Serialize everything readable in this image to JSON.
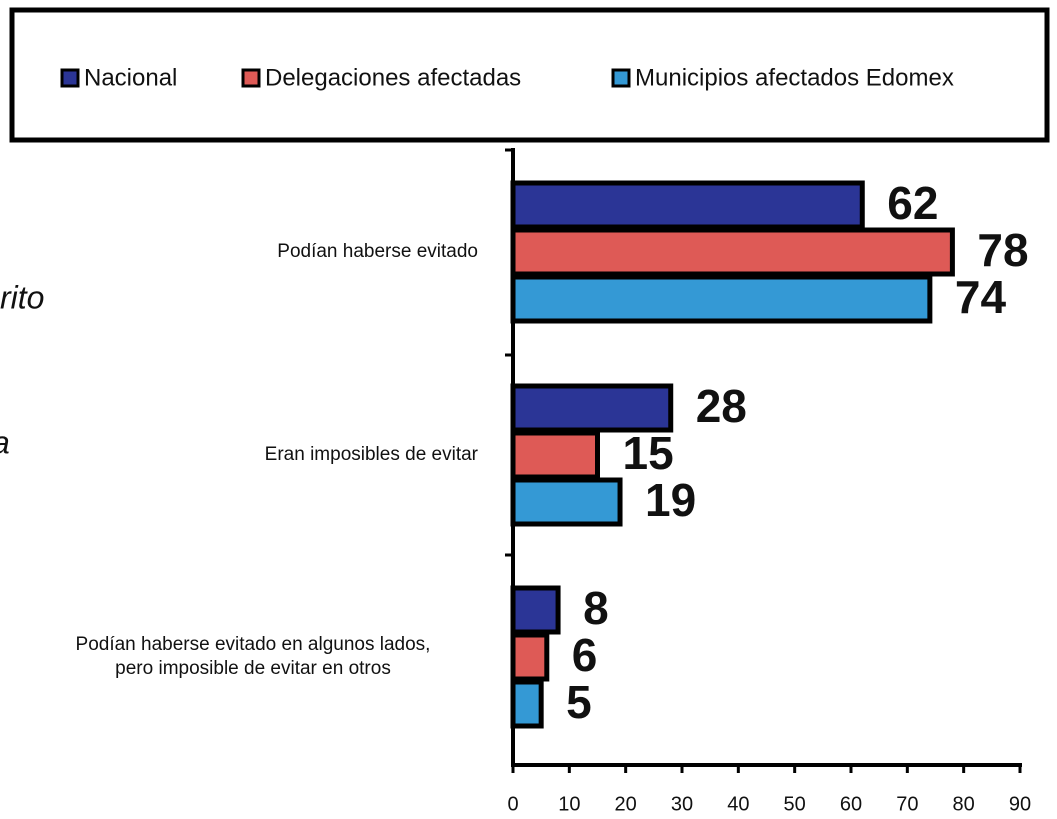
{
  "chart_data": {
    "type": "bar",
    "orientation": "horizontal",
    "categories": [
      "Podían haberse evitado",
      "Eran imposibles de evitar",
      "Podían haberse evitado en algunos lados,\npero imposible de evitar en otros"
    ],
    "series": [
      {
        "name": "Nacional",
        "color": "#2b3596",
        "values": [
          62,
          28,
          8
        ]
      },
      {
        "name": "Delegaciones afectadas",
        "color": "#de5a56",
        "values": [
          78,
          15,
          6
        ]
      },
      {
        "name": "Municipios afectados Edomex",
        "color": "#3499d5",
        "values": [
          74,
          19,
          5
        ]
      }
    ],
    "xlim": [
      0,
      90
    ],
    "xticks": [
      0,
      10,
      20,
      30,
      40,
      50,
      60,
      70,
      80,
      90
    ],
    "legend": "top",
    "annotations": [
      "rito",
      "a"
    ]
  }
}
